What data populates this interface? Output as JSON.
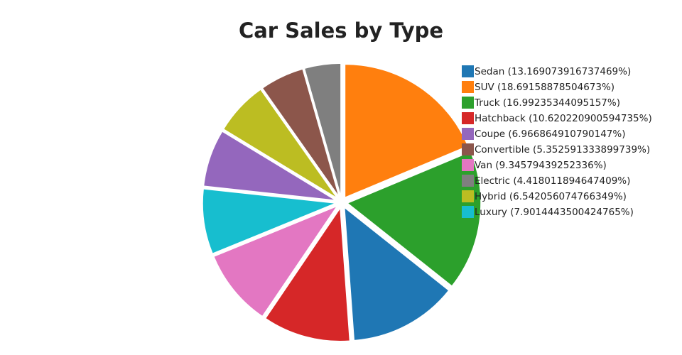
{
  "chart_data": {
    "type": "pie",
    "title": "Car Sales by Type",
    "categories": [
      "Sedan (13.169073916737469%)",
      "SUV (18.69158878504673%)",
      "Truck (16.99235344095157%)",
      "Hatchback (10.620220900594735%)",
      "Coupe (6.966864910790147%)",
      "Convertible (5.352591333899739%)",
      "Van (9.34579439252336%)",
      "Electric (4.418011894647409%)",
      "Hybrid (6.542056074766349%)",
      "Luxury (7.9014443500424765%)"
    ],
    "values": [
      13.169073916737469,
      18.69158878504673,
      16.99235344095157,
      10.620220900594735,
      6.966864910790147,
      5.352591333899739,
      9.34579439252336,
      4.418011894647409,
      6.542056074766349,
      7.9014443500424765
    ],
    "colors": [
      "#1f77b4",
      "#ff7f0e",
      "#2ca02c",
      "#d62728",
      "#9467bd",
      "#8c564b",
      "#e377c2",
      "#7f7f7f",
      "#bcbd22",
      "#17becf"
    ],
    "sort": true,
    "legend": "top-right"
  }
}
